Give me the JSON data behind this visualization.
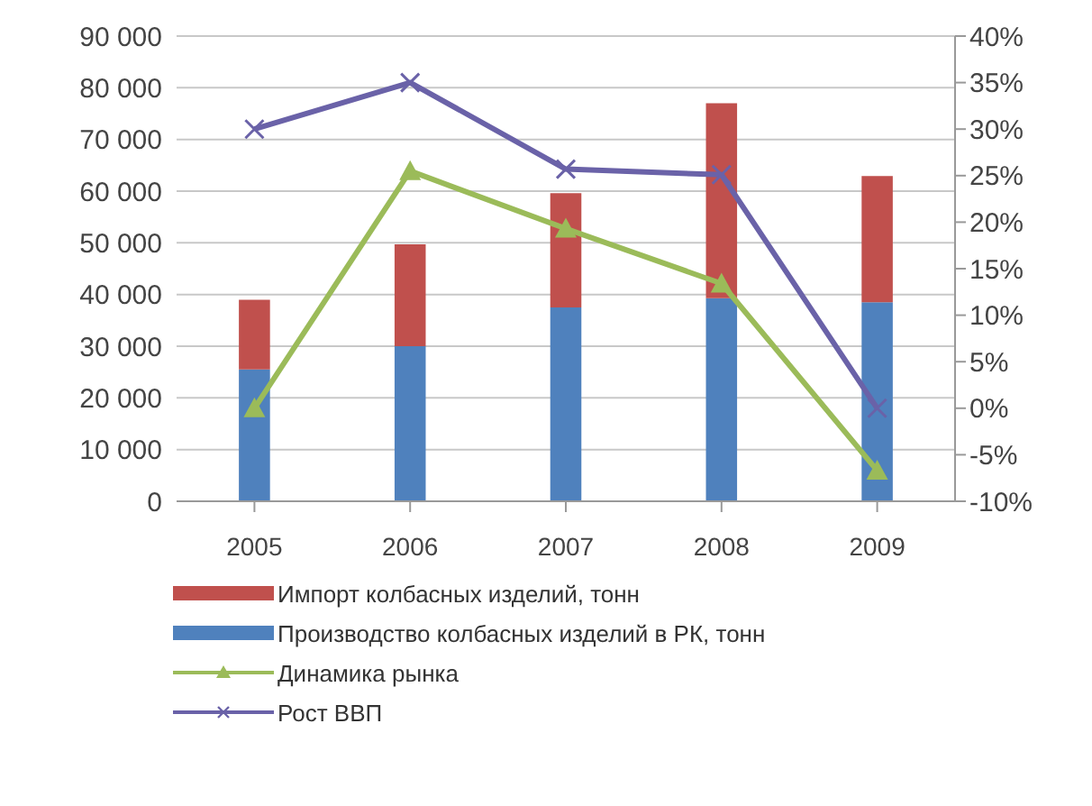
{
  "chart_data": {
    "type": "bar",
    "stacked": true,
    "categories": [
      "2005",
      "2006",
      "2007",
      "2008",
      "2009"
    ],
    "series": [
      {
        "name": "Производство колбасных изделий в РК, тонн",
        "color": "#4f81bd",
        "values": [
          25500,
          30000,
          37500,
          39300,
          38500
        ]
      },
      {
        "name": "Импорт колбасных изделий, тонн",
        "color": "#c0504d",
        "values": [
          13500,
          19700,
          22100,
          37700,
          24400
        ]
      },
      {
        "name": "Динамика рынка",
        "type": "line",
        "axis": "y2",
        "color": "#9bbb59",
        "marker": "triangle",
        "values": [
          0,
          25.5,
          19.3,
          13.4,
          -6.7
        ]
      },
      {
        "name": "Рост ВВП",
        "type": "line",
        "axis": "y2",
        "color": "#6a62a8",
        "marker": "cross",
        "values": [
          30,
          35,
          25.7,
          25.1,
          0
        ]
      }
    ],
    "ylim": [
      0,
      90000
    ],
    "yticks": [
      {
        "value": 0,
        "label": "0"
      },
      {
        "value": 10000,
        "label": "10 000"
      },
      {
        "value": 20000,
        "label": "20 000"
      },
      {
        "value": 30000,
        "label": "30 000"
      },
      {
        "value": 40000,
        "label": "40 000"
      },
      {
        "value": 50000,
        "label": "50 000"
      },
      {
        "value": 60000,
        "label": "60 000"
      },
      {
        "value": 70000,
        "label": "70 000"
      },
      {
        "value": 80000,
        "label": "80 000"
      },
      {
        "value": 90000,
        "label": "90 000"
      }
    ],
    "y2lim": [
      -10,
      40
    ],
    "y2ticks": [
      {
        "value": -10,
        "label": "-10%"
      },
      {
        "value": -5,
        "label": "-5%"
      },
      {
        "value": 0,
        "label": "0%"
      },
      {
        "value": 5,
        "label": "5%"
      },
      {
        "value": 10,
        "label": "10%"
      },
      {
        "value": 15,
        "label": "15%"
      },
      {
        "value": 20,
        "label": "20%"
      },
      {
        "value": 25,
        "label": "25%"
      },
      {
        "value": 30,
        "label": "30%"
      },
      {
        "value": 35,
        "label": "35%"
      },
      {
        "value": 40,
        "label": "40%"
      }
    ],
    "grid": "y",
    "legend": "bottom"
  }
}
